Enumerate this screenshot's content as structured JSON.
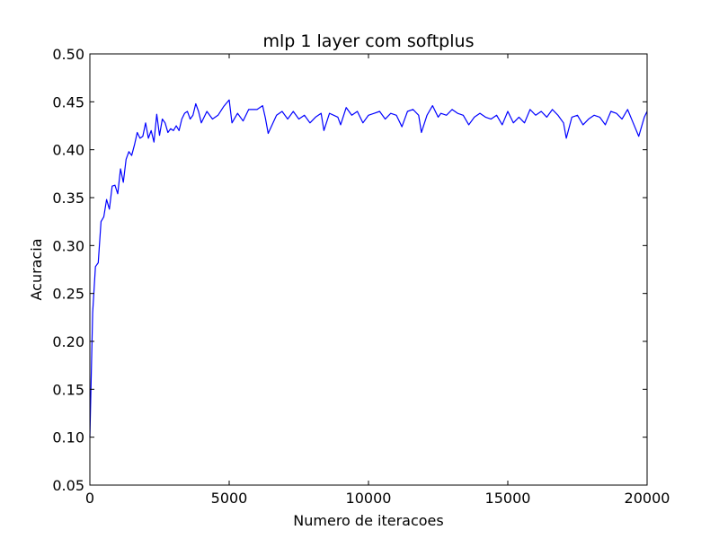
{
  "chart_data": {
    "type": "line",
    "title": "mlp 1 layer com softplus",
    "xlabel": "Numero de iteracoes",
    "ylabel": "Acuracia",
    "xlim": [
      0,
      20000
    ],
    "ylim": [
      0.05,
      0.5
    ],
    "xticks": [
      0,
      5000,
      10000,
      15000,
      20000
    ],
    "xtick_labels": [
      "0",
      "5000",
      "10000",
      "15000",
      "20000"
    ],
    "yticks": [
      0.05,
      0.1,
      0.15,
      0.2,
      0.25,
      0.3,
      0.35,
      0.4,
      0.45,
      0.5
    ],
    "ytick_labels": [
      "0.05",
      "0.10",
      "0.15",
      "0.20",
      "0.25",
      "0.30",
      "0.35",
      "0.40",
      "0.45",
      "0.50"
    ],
    "grid": false,
    "legend": "none",
    "series": [
      {
        "color": "#0000ff",
        "x": [
          0,
          100,
          200,
          300,
          400,
          500,
          600,
          700,
          800,
          900,
          1000,
          1100,
          1200,
          1300,
          1400,
          1500,
          1600,
          1700,
          1800,
          1900,
          2000,
          2100,
          2200,
          2300,
          2400,
          2500,
          2600,
          2700,
          2800,
          2900,
          3000,
          3100,
          3200,
          3300,
          3400,
          3500,
          3600,
          3700,
          3800,
          3900,
          4000,
          4200,
          4400,
          4600,
          4800,
          5000,
          5100,
          5300,
          5500,
          5700,
          6000,
          6200,
          6300,
          6400,
          6700,
          6900,
          7100,
          7300,
          7500,
          7700,
          7900,
          8100,
          8300,
          8400,
          8600,
          8900,
          9000,
          9200,
          9400,
          9600,
          9800,
          10000,
          10200,
          10400,
          10600,
          10800,
          11000,
          11200,
          11400,
          11600,
          11800,
          11900,
          12100,
          12300,
          12500,
          12600,
          12800,
          13000,
          13200,
          13400,
          13600,
          13800,
          14000,
          14200,
          14400,
          14600,
          14800,
          15000,
          15200,
          15400,
          15600,
          15800,
          16000,
          16200,
          16400,
          16600,
          16800,
          17000,
          17100,
          17300,
          17500,
          17700,
          17900,
          18100,
          18300,
          18500,
          18700,
          18900,
          19100,
          19300,
          19500,
          19700,
          19900,
          20000
        ],
        "y": [
          0.1,
          0.23,
          0.278,
          0.282,
          0.325,
          0.33,
          0.348,
          0.338,
          0.362,
          0.363,
          0.354,
          0.38,
          0.366,
          0.39,
          0.398,
          0.394,
          0.405,
          0.418,
          0.412,
          0.414,
          0.428,
          0.412,
          0.42,
          0.408,
          0.437,
          0.415,
          0.432,
          0.428,
          0.418,
          0.422,
          0.42,
          0.425,
          0.42,
          0.432,
          0.438,
          0.44,
          0.432,
          0.436,
          0.448,
          0.44,
          0.428,
          0.44,
          0.432,
          0.436,
          0.445,
          0.452,
          0.428,
          0.438,
          0.43,
          0.442,
          0.442,
          0.446,
          0.433,
          0.417,
          0.436,
          0.44,
          0.432,
          0.44,
          0.432,
          0.436,
          0.428,
          0.434,
          0.438,
          0.42,
          0.438,
          0.434,
          0.426,
          0.444,
          0.436,
          0.44,
          0.428,
          0.436,
          0.438,
          0.44,
          0.432,
          0.438,
          0.436,
          0.424,
          0.44,
          0.442,
          0.436,
          0.418,
          0.436,
          0.446,
          0.434,
          0.438,
          0.436,
          0.442,
          0.438,
          0.436,
          0.426,
          0.434,
          0.438,
          0.434,
          0.432,
          0.436,
          0.426,
          0.44,
          0.428,
          0.434,
          0.428,
          0.442,
          0.436,
          0.44,
          0.434,
          0.442,
          0.436,
          0.428,
          0.412,
          0.434,
          0.436,
          0.426,
          0.432,
          0.436,
          0.434,
          0.426,
          0.44,
          0.438,
          0.432,
          0.442,
          0.428,
          0.414,
          0.434,
          0.44
        ]
      }
    ]
  }
}
